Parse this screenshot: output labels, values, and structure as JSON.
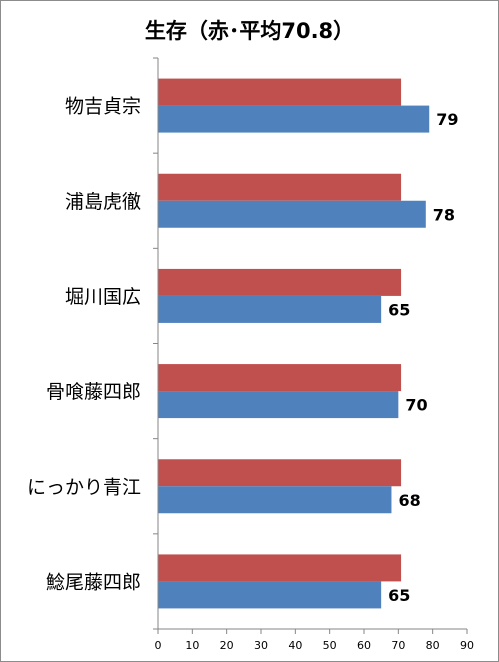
{
  "chart_data": {
    "type": "bar",
    "orientation": "horizontal",
    "title": "生存（赤･平均70.8）",
    "categories": [
      "物吉貞宗",
      "浦島虎徹",
      "堀川国広",
      "骨喰藤四郎",
      "にっかり青江",
      "鯰尾藤四郎"
    ],
    "series": [
      {
        "color": "#c0504d",
        "values": [
          70.8,
          70.8,
          70.8,
          70.8,
          70.8,
          70.8
        ]
      },
      {
        "color": "#4f81bd",
        "values": [
          79,
          78,
          65,
          70,
          68,
          65
        ]
      }
    ],
    "data_labels": [
      "79",
      "78",
      "65",
      "70",
      "68",
      "65"
    ],
    "x_ticks": [
      "0",
      "10",
      "20",
      "30",
      "40",
      "50",
      "60",
      "70",
      "80",
      "90"
    ],
    "xlim": [
      0,
      90
    ],
    "xlabel": "",
    "ylabel": "",
    "grid": false,
    "legend": "none"
  }
}
